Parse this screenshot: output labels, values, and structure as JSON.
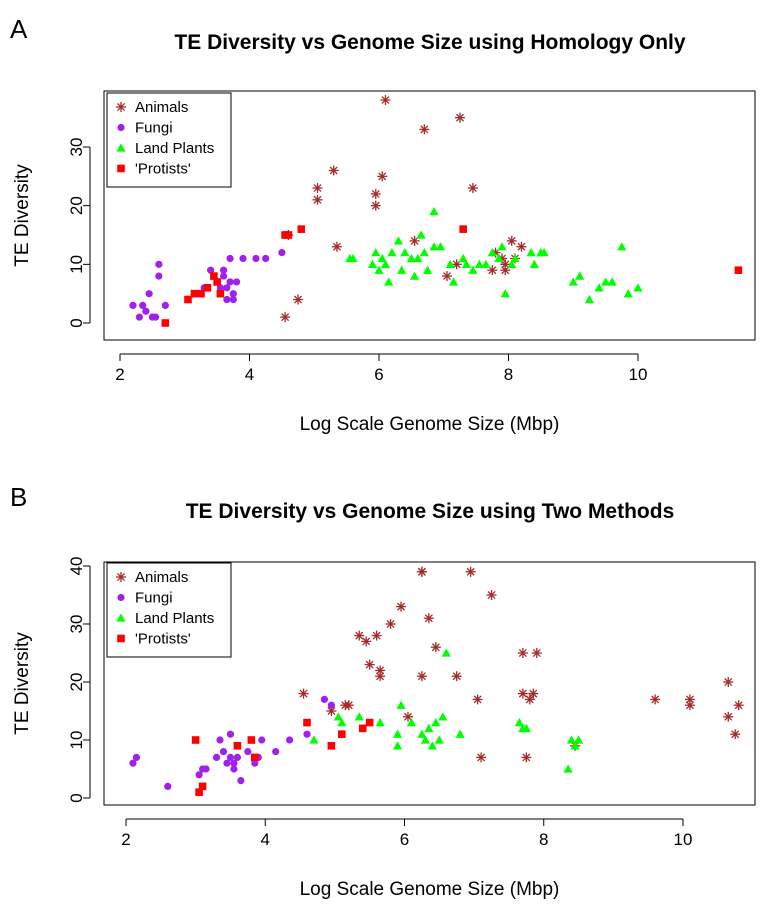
{
  "charts": [
    {
      "panel_label": "A",
      "chart_data": {
        "type": "scatter",
        "title": "TE Diversity vs Genome Size using Homology Only",
        "xlabel": "Log Scale Genome Size (Mbp)",
        "ylabel": "TE Diversity",
        "xlim": [
          2,
          11.5
        ],
        "ylim": [
          0,
          38
        ],
        "xticks": [
          2,
          4,
          6,
          8,
          10
        ],
        "yticks": [
          0,
          10,
          20,
          30
        ],
        "grid": false,
        "legend": "top-left",
        "series": [
          {
            "name": "Animals",
            "marker": "asterisk",
            "color": "#A52A2A",
            "points": [
              [
                4.6,
                15
              ],
              [
                4.55,
                1
              ],
              [
                4.75,
                4
              ],
              [
                5.05,
                23
              ],
              [
                5.05,
                21
              ],
              [
                5.3,
                26
              ],
              [
                5.35,
                13
              ],
              [
                5.95,
                22
              ],
              [
                5.95,
                20
              ],
              [
                6.05,
                25
              ],
              [
                6.1,
                38
              ],
              [
                6.55,
                14
              ],
              [
                6.7,
                33
              ],
              [
                7.25,
                35
              ],
              [
                7.45,
                23
              ],
              [
                7.05,
                8
              ],
              [
                7.2,
                10
              ],
              [
                7.75,
                9
              ],
              [
                7.8,
                12
              ],
              [
                7.9,
                11
              ],
              [
                7.95,
                10
              ],
              [
                7.95,
                9
              ],
              [
                8.05,
                14
              ],
              [
                8.1,
                11
              ],
              [
                8.2,
                13
              ]
            ]
          },
          {
            "name": "Fungi",
            "color": "#A020F0",
            "marker": "circle",
            "points": [
              [
                2.2,
                3
              ],
              [
                2.3,
                1
              ],
              [
                2.35,
                3
              ],
              [
                2.4,
                2
              ],
              [
                2.45,
                5
              ],
              [
                2.5,
                1
              ],
              [
                2.55,
                1
              ],
              [
                2.6,
                10
              ],
              [
                2.6,
                8
              ],
              [
                2.7,
                3
              ],
              [
                3.2,
                5
              ],
              [
                3.3,
                6
              ],
              [
                3.4,
                9
              ],
              [
                3.45,
                8
              ],
              [
                3.5,
                7
              ],
              [
                3.55,
                6
              ],
              [
                3.55,
                5
              ],
              [
                3.6,
                8
              ],
              [
                3.6,
                9
              ],
              [
                3.65,
                4
              ],
              [
                3.65,
                6
              ],
              [
                3.7,
                7
              ],
              [
                3.7,
                11
              ],
              [
                3.75,
                5
              ],
              [
                3.75,
                4
              ],
              [
                3.8,
                7
              ],
              [
                3.9,
                11
              ],
              [
                4.1,
                11
              ],
              [
                4.25,
                11
              ],
              [
                4.5,
                12
              ]
            ]
          },
          {
            "name": "Land Plants",
            "color": "#00FF00",
            "marker": "triangle",
            "points": [
              [
                5.55,
                11
              ],
              [
                5.6,
                11
              ],
              [
                5.9,
                10
              ],
              [
                5.95,
                12
              ],
              [
                6.0,
                9
              ],
              [
                6.05,
                11
              ],
              [
                6.1,
                10
              ],
              [
                6.15,
                7
              ],
              [
                6.2,
                12
              ],
              [
                6.3,
                14
              ],
              [
                6.35,
                9
              ],
              [
                6.4,
                12
              ],
              [
                6.5,
                11
              ],
              [
                6.55,
                8
              ],
              [
                6.6,
                11
              ],
              [
                6.65,
                15
              ],
              [
                6.7,
                12
              ],
              [
                6.75,
                9
              ],
              [
                6.85,
                13
              ],
              [
                6.95,
                13
              ],
              [
                6.85,
                19
              ],
              [
                7.1,
                10
              ],
              [
                7.15,
                7
              ],
              [
                7.3,
                11
              ],
              [
                7.35,
                10
              ],
              [
                7.45,
                9
              ],
              [
                7.55,
                10
              ],
              [
                7.65,
                10
              ],
              [
                7.75,
                12
              ],
              [
                7.85,
                11
              ],
              [
                7.9,
                13
              ],
              [
                7.95,
                5
              ],
              [
                8.05,
                10
              ],
              [
                8.1,
                11
              ],
              [
                8.35,
                12
              ],
              [
                8.4,
                10
              ],
              [
                8.5,
                12
              ],
              [
                8.55,
                12
              ],
              [
                9.0,
                7
              ],
              [
                9.1,
                8
              ],
              [
                9.25,
                4
              ],
              [
                9.4,
                6
              ],
              [
                9.5,
                7
              ],
              [
                9.6,
                7
              ],
              [
                9.75,
                13
              ],
              [
                9.85,
                5
              ],
              [
                10.0,
                6
              ]
            ]
          },
          {
            "name": "'Protists'",
            "color": "#FF0000",
            "marker": "square",
            "points": [
              [
                2.7,
                0
              ],
              [
                3.05,
                4
              ],
              [
                3.15,
                5
              ],
              [
                3.25,
                5
              ],
              [
                3.35,
                6
              ],
              [
                3.45,
                8
              ],
              [
                3.5,
                7
              ],
              [
                3.55,
                5
              ],
              [
                4.55,
                15
              ],
              [
                4.6,
                15
              ],
              [
                4.8,
                16
              ],
              [
                7.3,
                16
              ],
              [
                11.55,
                9
              ]
            ]
          }
        ]
      }
    },
    {
      "panel_label": "B",
      "chart_data": {
        "type": "scatter",
        "title": "TE Diversity vs Genome Size using Two Methods",
        "xlabel": "Log Scale Genome Size (Mbp)",
        "ylabel": "TE Diversity",
        "xlim": [
          2,
          10.8
        ],
        "ylim": [
          0,
          40
        ],
        "xticks": [
          2,
          4,
          6,
          8,
          10
        ],
        "yticks": [
          0,
          10,
          20,
          30,
          40
        ],
        "grid": false,
        "legend": "top-left",
        "series": [
          {
            "name": "Animals",
            "marker": "asterisk",
            "color": "#A52A2A",
            "points": [
              [
                4.55,
                18
              ],
              [
                4.95,
                15
              ],
              [
                5.15,
                16
              ],
              [
                5.2,
                16
              ],
              [
                5.35,
                28
              ],
              [
                5.45,
                27
              ],
              [
                5.5,
                23
              ],
              [
                5.6,
                28
              ],
              [
                5.65,
                22
              ],
              [
                5.65,
                21
              ],
              [
                5.8,
                30
              ],
              [
                5.95,
                33
              ],
              [
                6.05,
                14
              ],
              [
                6.25,
                21
              ],
              [
                6.25,
                39
              ],
              [
                6.25,
                39
              ],
              [
                6.35,
                31
              ],
              [
                6.45,
                26
              ],
              [
                6.75,
                21
              ],
              [
                6.95,
                39
              ],
              [
                7.05,
                17
              ],
              [
                7.1,
                7
              ],
              [
                7.25,
                35
              ],
              [
                7.7,
                25
              ],
              [
                7.7,
                18
              ],
              [
                7.75,
                7
              ],
              [
                7.8,
                17
              ],
              [
                7.85,
                18
              ],
              [
                7.9,
                25
              ],
              [
                8.45,
                9
              ],
              [
                9.6,
                17
              ],
              [
                10.1,
                17
              ],
              [
                10.1,
                16
              ],
              [
                10.65,
                20
              ],
              [
                10.65,
                14
              ],
              [
                10.75,
                11
              ],
              [
                10.8,
                16
              ]
            ]
          },
          {
            "name": "Fungi",
            "color": "#A020F0",
            "marker": "circle",
            "points": [
              [
                2.1,
                6
              ],
              [
                2.15,
                7
              ],
              [
                2.6,
                2
              ],
              [
                3.05,
                4
              ],
              [
                3.1,
                5
              ],
              [
                3.15,
                5
              ],
              [
                3.3,
                7
              ],
              [
                3.35,
                10
              ],
              [
                3.4,
                8
              ],
              [
                3.45,
                6
              ],
              [
                3.5,
                11
              ],
              [
                3.5,
                7
              ],
              [
                3.55,
                5
              ],
              [
                3.55,
                6
              ],
              [
                3.6,
                7
              ],
              [
                3.65,
                3
              ],
              [
                3.75,
                8
              ],
              [
                3.85,
                6
              ],
              [
                3.9,
                7
              ],
              [
                3.95,
                10
              ],
              [
                4.15,
                8
              ],
              [
                4.35,
                10
              ],
              [
                4.6,
                11
              ],
              [
                4.85,
                17
              ],
              [
                4.95,
                16
              ]
            ]
          },
          {
            "name": "Land Plants",
            "color": "#00FF00",
            "marker": "triangle",
            "points": [
              [
                4.7,
                10
              ],
              [
                5.05,
                14
              ],
              [
                5.1,
                13
              ],
              [
                5.35,
                14
              ],
              [
                5.65,
                13
              ],
              [
                5.9,
                9
              ],
              [
                5.9,
                11
              ],
              [
                5.95,
                16
              ],
              [
                6.1,
                13
              ],
              [
                6.25,
                11
              ],
              [
                6.3,
                10
              ],
              [
                6.35,
                12
              ],
              [
                6.4,
                9
              ],
              [
                6.45,
                13
              ],
              [
                6.5,
                10
              ],
              [
                6.55,
                14
              ],
              [
                6.6,
                25
              ],
              [
                6.8,
                11
              ],
              [
                7.65,
                13
              ],
              [
                7.7,
                12
              ],
              [
                7.75,
                12
              ],
              [
                8.35,
                5
              ],
              [
                8.4,
                10
              ],
              [
                8.45,
                9
              ],
              [
                8.5,
                10
              ]
            ]
          },
          {
            "name": "'Protists'",
            "color": "#FF0000",
            "marker": "square",
            "points": [
              [
                3.0,
                10
              ],
              [
                3.05,
                1
              ],
              [
                3.1,
                2
              ],
              [
                3.6,
                9
              ],
              [
                3.8,
                10
              ],
              [
                3.85,
                7
              ],
              [
                4.6,
                13
              ],
              [
                4.95,
                9
              ],
              [
                5.1,
                11
              ],
              [
                5.4,
                12
              ],
              [
                5.5,
                13
              ]
            ]
          }
        ]
      }
    }
  ]
}
